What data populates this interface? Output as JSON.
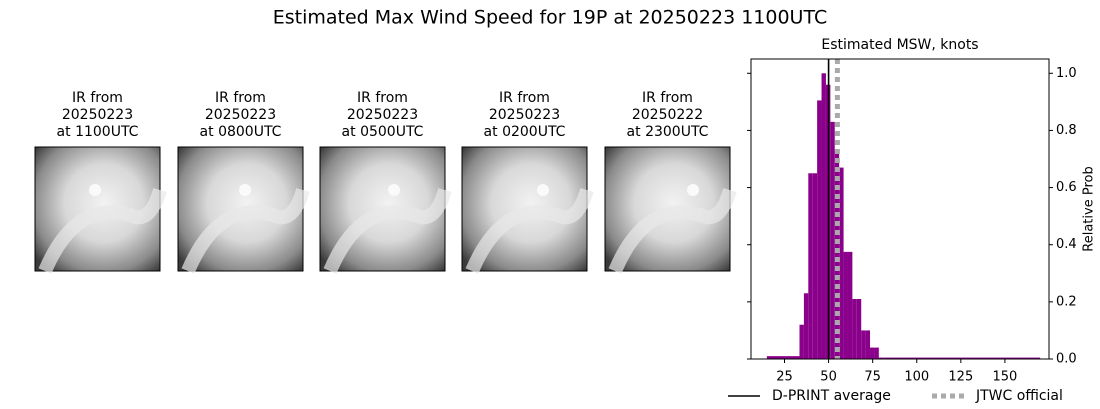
{
  "figure_title": "Estimated Max Wind Speed for 19P at 20250223 1100UTC",
  "panels": [
    {
      "lines": [
        "IR from",
        "20250223",
        "at 1100UTC"
      ]
    },
    {
      "lines": [
        "IR from",
        "20250223",
        "at 0800UTC"
      ]
    },
    {
      "lines": [
        "IR from",
        "20250223",
        "at 0500UTC"
      ]
    },
    {
      "lines": [
        "IR from",
        "20250223",
        "at 0200UTC"
      ]
    },
    {
      "lines": [
        "IR from",
        "20250222",
        "at 2300UTC"
      ]
    }
  ],
  "chart_data": {
    "type": "histogram",
    "title": "Estimated MSW, knots",
    "ylabel": "Relative Prob",
    "bins": [
      15,
      33.5,
      36,
      38.5,
      41,
      43.5,
      46,
      48.5,
      51,
      53.5,
      56,
      58.5,
      61,
      63.5,
      66,
      68.5,
      71,
      73.5,
      76,
      78.5,
      81,
      170
    ],
    "values": [
      0.01,
      0.12,
      0.23,
      0.65,
      0.65,
      0.905,
      1.0,
      0.96,
      0.83,
      0.73,
      0.67,
      0.375,
      0.375,
      0.21,
      0.21,
      0.1,
      0.1,
      0.04,
      0.04,
      0.005,
      0.005
    ],
    "color": "#8b008b",
    "xlim": [
      6,
      175
    ],
    "ylim": [
      0,
      1.05
    ],
    "xticks": [
      25,
      50,
      75,
      100,
      125,
      150
    ],
    "yticks": [
      {
        "value": 0,
        "label": "0.0"
      },
      0.2,
      0.4,
      0.6,
      0.8,
      {
        "value": 1,
        "label": "1.0"
      }
    ],
    "yaxis_side": "right",
    "reference_lines": [
      {
        "name": "D-PRINT average",
        "value": 50,
        "color": "#000000",
        "style": "solid"
      },
      {
        "name": "JTWC official",
        "value": 55,
        "color": "#aaaaaa",
        "style": "dotted"
      }
    ]
  }
}
